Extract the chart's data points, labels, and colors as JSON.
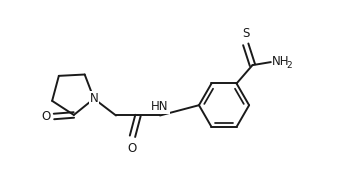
{
  "bg_color": "#ffffff",
  "line_color": "#1a1a1a",
  "lw": 1.4,
  "fs": 8.5,
  "fs_sub": 6.5,
  "xlim": [
    -0.5,
    9.0
  ],
  "ylim": [
    0.5,
    6.5
  ],
  "figsize": [
    3.38,
    1.89
  ],
  "dpi": 100
}
